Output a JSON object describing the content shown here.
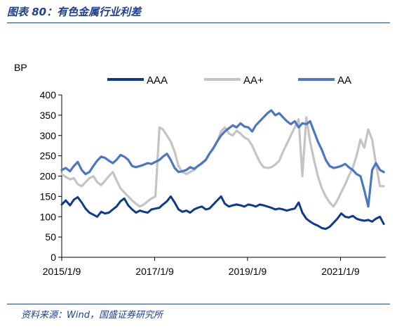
{
  "figure": {
    "title": "图表 80：有色金属行业利差",
    "source": "资料来源：Wind，国盛证券研究所"
  },
  "colors": {
    "title": "#1f3f8f",
    "AAA": "#0c3a8c",
    "AA+": "#c4c4c4",
    "AA": "#4a76c2"
  },
  "chart_data": {
    "type": "line",
    "title": "",
    "xlabel": "",
    "ylabel": "BP",
    "ylim": [
      0,
      400
    ],
    "yticks": [
      0,
      50,
      100,
      150,
      200,
      250,
      300,
      350,
      400
    ],
    "xlim": [
      "2015-01-09",
      "2021-12-31"
    ],
    "xtick_labels": [
      "2015/1/9",
      "2017/1/9",
      "2019/1/9",
      "2021/1/9"
    ],
    "xtick_dates": [
      "2015-01-09",
      "2017-01-09",
      "2019-01-09",
      "2021-01-09"
    ],
    "grid": false,
    "legend": "top",
    "series": [
      {
        "name": "AAA",
        "points": [
          [
            "2015-01-09",
            130
          ],
          [
            "2015-02-10",
            140
          ],
          [
            "2015-03-15",
            128
          ],
          [
            "2015-04-15",
            142
          ],
          [
            "2015-05-15",
            148
          ],
          [
            "2015-06-15",
            135
          ],
          [
            "2015-07-15",
            120
          ],
          [
            "2015-08-15",
            110
          ],
          [
            "2015-09-15",
            105
          ],
          [
            "2015-10-15",
            100
          ],
          [
            "2015-11-15",
            112
          ],
          [
            "2015-12-15",
            108
          ],
          [
            "2016-01-15",
            110
          ],
          [
            "2016-02-15",
            118
          ],
          [
            "2016-03-15",
            125
          ],
          [
            "2016-04-15",
            138
          ],
          [
            "2016-05-15",
            145
          ],
          [
            "2016-06-15",
            128
          ],
          [
            "2016-07-15",
            118
          ],
          [
            "2016-08-15",
            110
          ],
          [
            "2016-09-15",
            115
          ],
          [
            "2016-10-15",
            112
          ],
          [
            "2016-11-15",
            110
          ],
          [
            "2016-12-15",
            118
          ],
          [
            "2017-01-15",
            120
          ],
          [
            "2017-02-15",
            122
          ],
          [
            "2017-03-15",
            130
          ],
          [
            "2017-04-15",
            138
          ],
          [
            "2017-05-15",
            150
          ],
          [
            "2017-06-15",
            135
          ],
          [
            "2017-07-15",
            118
          ],
          [
            "2017-08-15",
            112
          ],
          [
            "2017-09-15",
            115
          ],
          [
            "2017-10-15",
            110
          ],
          [
            "2017-11-15",
            118
          ],
          [
            "2017-12-15",
            122
          ],
          [
            "2018-01-15",
            125
          ],
          [
            "2018-02-15",
            118
          ],
          [
            "2018-03-15",
            120
          ],
          [
            "2018-04-15",
            130
          ],
          [
            "2018-05-15",
            140
          ],
          [
            "2018-06-15",
            150
          ],
          [
            "2018-07-15",
            132
          ],
          [
            "2018-08-15",
            125
          ],
          [
            "2018-09-15",
            128
          ],
          [
            "2018-10-15",
            130
          ],
          [
            "2018-11-15",
            128
          ],
          [
            "2018-12-15",
            125
          ],
          [
            "2019-01-15",
            130
          ],
          [
            "2019-02-15",
            128
          ],
          [
            "2019-03-15",
            125
          ],
          [
            "2019-04-15",
            130
          ],
          [
            "2019-05-15",
            128
          ],
          [
            "2019-06-15",
            125
          ],
          [
            "2019-07-15",
            122
          ],
          [
            "2019-08-15",
            118
          ],
          [
            "2019-09-15",
            120
          ],
          [
            "2019-10-15",
            118
          ],
          [
            "2019-11-15",
            115
          ],
          [
            "2019-12-15",
            118
          ],
          [
            "2020-01-15",
            120
          ],
          [
            "2020-02-15",
            135
          ],
          [
            "2020-03-15",
            110
          ],
          [
            "2020-04-15",
            95
          ],
          [
            "2020-05-15",
            88
          ],
          [
            "2020-06-15",
            82
          ],
          [
            "2020-07-15",
            78
          ],
          [
            "2020-08-15",
            72
          ],
          [
            "2020-09-15",
            70
          ],
          [
            "2020-10-15",
            75
          ],
          [
            "2020-11-15",
            85
          ],
          [
            "2020-12-15",
            95
          ],
          [
            "2021-01-15",
            108
          ],
          [
            "2021-02-15",
            100
          ],
          [
            "2021-03-15",
            98
          ],
          [
            "2021-04-15",
            102
          ],
          [
            "2021-05-15",
            95
          ],
          [
            "2021-06-15",
            92
          ],
          [
            "2021-07-15",
            90
          ],
          [
            "2021-08-15",
            92
          ],
          [
            "2021-09-15",
            88
          ],
          [
            "2021-10-15",
            95
          ],
          [
            "2021-11-15",
            100
          ],
          [
            "2021-12-15",
            82
          ]
        ]
      },
      {
        "name": "AA+",
        "points": [
          [
            "2015-01-09",
            205
          ],
          [
            "2015-02-10",
            198
          ],
          [
            "2015-03-15",
            192
          ],
          [
            "2015-04-15",
            195
          ],
          [
            "2015-05-15",
            180
          ],
          [
            "2015-06-15",
            175
          ],
          [
            "2015-07-15",
            185
          ],
          [
            "2015-08-15",
            195
          ],
          [
            "2015-09-15",
            200
          ],
          [
            "2015-10-15",
            185
          ],
          [
            "2015-11-15",
            178
          ],
          [
            "2015-12-15",
            188
          ],
          [
            "2016-01-15",
            200
          ],
          [
            "2016-02-15",
            210
          ],
          [
            "2016-03-15",
            190
          ],
          [
            "2016-04-15",
            170
          ],
          [
            "2016-05-15",
            160
          ],
          [
            "2016-06-15",
            150
          ],
          [
            "2016-07-15",
            140
          ],
          [
            "2016-08-15",
            132
          ],
          [
            "2016-09-15",
            125
          ],
          [
            "2016-10-15",
            130
          ],
          [
            "2016-11-15",
            138
          ],
          [
            "2016-12-15",
            145
          ],
          [
            "2017-01-15",
            150
          ],
          [
            "2017-02-15",
            320
          ],
          [
            "2017-03-15",
            315
          ],
          [
            "2017-04-15",
            300
          ],
          [
            "2017-05-15",
            285
          ],
          [
            "2017-06-15",
            260
          ],
          [
            "2017-07-15",
            225
          ],
          [
            "2017-08-15",
            210
          ],
          [
            "2017-09-15",
            205
          ],
          [
            "2017-10-15",
            210
          ],
          [
            "2017-11-15",
            215
          ],
          [
            "2017-12-15",
            225
          ],
          [
            "2018-01-15",
            230
          ],
          [
            "2018-02-15",
            240
          ],
          [
            "2018-03-15",
            255
          ],
          [
            "2018-04-15",
            270
          ],
          [
            "2018-05-15",
            285
          ],
          [
            "2018-06-15",
            310
          ],
          [
            "2018-07-15",
            320
          ],
          [
            "2018-08-15",
            305
          ],
          [
            "2018-09-15",
            300
          ],
          [
            "2018-10-15",
            312
          ],
          [
            "2018-11-15",
            305
          ],
          [
            "2018-12-15",
            295
          ],
          [
            "2019-01-15",
            290
          ],
          [
            "2019-02-15",
            275
          ],
          [
            "2019-03-15",
            255
          ],
          [
            "2019-04-15",
            235
          ],
          [
            "2019-05-15",
            222
          ],
          [
            "2019-06-15",
            220
          ],
          [
            "2019-07-15",
            222
          ],
          [
            "2019-08-15",
            228
          ],
          [
            "2019-09-15",
            238
          ],
          [
            "2019-10-15",
            260
          ],
          [
            "2019-11-15",
            280
          ],
          [
            "2019-12-15",
            300
          ],
          [
            "2020-01-15",
            320
          ],
          [
            "2020-02-15",
            340
          ],
          [
            "2020-03-15",
            200
          ],
          [
            "2020-04-15",
            345
          ],
          [
            "2020-05-15",
            285
          ],
          [
            "2020-06-15",
            240
          ],
          [
            "2020-07-15",
            200
          ],
          [
            "2020-08-15",
            170
          ],
          [
            "2020-09-15",
            150
          ],
          [
            "2020-10-15",
            135
          ],
          [
            "2020-11-15",
            125
          ],
          [
            "2020-12-15",
            140
          ],
          [
            "2021-01-15",
            160
          ],
          [
            "2021-02-15",
            180
          ],
          [
            "2021-03-15",
            200
          ],
          [
            "2021-04-15",
            220
          ],
          [
            "2021-05-15",
            250
          ],
          [
            "2021-06-15",
            290
          ],
          [
            "2021-07-15",
            270
          ],
          [
            "2021-08-15",
            315
          ],
          [
            "2021-09-15",
            290
          ],
          [
            "2021-10-15",
            230
          ],
          [
            "2021-11-15",
            175
          ],
          [
            "2021-12-15",
            175
          ]
        ]
      },
      {
        "name": "AA",
        "points": [
          [
            "2015-01-09",
            215
          ],
          [
            "2015-02-10",
            220
          ],
          [
            "2015-03-15",
            212
          ],
          [
            "2015-04-15",
            225
          ],
          [
            "2015-05-15",
            235
          ],
          [
            "2015-06-15",
            215
          ],
          [
            "2015-07-15",
            205
          ],
          [
            "2015-08-15",
            210
          ],
          [
            "2015-09-15",
            225
          ],
          [
            "2015-10-15",
            238
          ],
          [
            "2015-11-15",
            248
          ],
          [
            "2015-12-15",
            245
          ],
          [
            "2016-01-15",
            238
          ],
          [
            "2016-02-15",
            232
          ],
          [
            "2016-03-15",
            240
          ],
          [
            "2016-04-15",
            252
          ],
          [
            "2016-05-15",
            248
          ],
          [
            "2016-06-15",
            240
          ],
          [
            "2016-07-15",
            225
          ],
          [
            "2016-08-15",
            222
          ],
          [
            "2016-09-15",
            225
          ],
          [
            "2016-10-15",
            228
          ],
          [
            "2016-11-15",
            232
          ],
          [
            "2016-12-15",
            230
          ],
          [
            "2017-01-15",
            235
          ],
          [
            "2017-02-15",
            240
          ],
          [
            "2017-03-15",
            248
          ],
          [
            "2017-04-15",
            255
          ],
          [
            "2017-05-15",
            240
          ],
          [
            "2017-06-15",
            220
          ],
          [
            "2017-07-15",
            210
          ],
          [
            "2017-08-15",
            212
          ],
          [
            "2017-09-15",
            215
          ],
          [
            "2017-10-15",
            222
          ],
          [
            "2017-11-15",
            218
          ],
          [
            "2017-12-15",
            225
          ],
          [
            "2018-01-15",
            232
          ],
          [
            "2018-02-15",
            240
          ],
          [
            "2018-03-15",
            255
          ],
          [
            "2018-04-15",
            268
          ],
          [
            "2018-05-15",
            285
          ],
          [
            "2018-06-15",
            300
          ],
          [
            "2018-07-15",
            310
          ],
          [
            "2018-08-15",
            318
          ],
          [
            "2018-09-15",
            325
          ],
          [
            "2018-10-15",
            320
          ],
          [
            "2018-11-15",
            330
          ],
          [
            "2018-12-15",
            322
          ],
          [
            "2019-01-15",
            320
          ],
          [
            "2019-02-15",
            310
          ],
          [
            "2019-03-15",
            325
          ],
          [
            "2019-04-15",
            335
          ],
          [
            "2019-05-15",
            345
          ],
          [
            "2019-06-15",
            355
          ],
          [
            "2019-07-15",
            362
          ],
          [
            "2019-08-15",
            350
          ],
          [
            "2019-09-15",
            355
          ],
          [
            "2019-10-15",
            345
          ],
          [
            "2019-11-15",
            335
          ],
          [
            "2019-12-15",
            328
          ],
          [
            "2020-01-15",
            335
          ],
          [
            "2020-02-15",
            320
          ],
          [
            "2020-03-15",
            330
          ],
          [
            "2020-04-15",
            328
          ],
          [
            "2020-05-15",
            335
          ],
          [
            "2020-06-15",
            310
          ],
          [
            "2020-07-15",
            285
          ],
          [
            "2020-08-15",
            265
          ],
          [
            "2020-09-15",
            240
          ],
          [
            "2020-10-15",
            225
          ],
          [
            "2020-11-15",
            220
          ],
          [
            "2020-12-15",
            222
          ],
          [
            "2021-01-15",
            225
          ],
          [
            "2021-02-15",
            230
          ],
          [
            "2021-03-15",
            222
          ],
          [
            "2021-04-15",
            215
          ],
          [
            "2021-05-15",
            205
          ],
          [
            "2021-06-15",
            200
          ],
          [
            "2021-07-15",
            165
          ],
          [
            "2021-08-15",
            125
          ],
          [
            "2021-09-15",
            215
          ],
          [
            "2021-10-15",
            232
          ],
          [
            "2021-11-15",
            215
          ],
          [
            "2021-12-15",
            210
          ]
        ]
      }
    ]
  }
}
